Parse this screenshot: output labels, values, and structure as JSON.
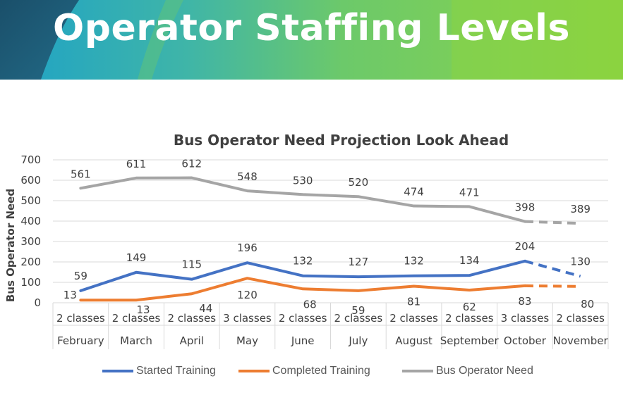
{
  "page_title": "Operator Staffing Levels",
  "colors": {
    "banner_dark": "#1c5a78",
    "banner_teal": "#1ea2c7",
    "banner_green": "#6cc96a",
    "banner_lime": "#8bd33f",
    "started": "#4472c4",
    "completed": "#ed7d31",
    "need": "#a5a5a5"
  },
  "chart_data": {
    "type": "line",
    "title": "Bus Operator Need Projection Look Ahead",
    "xlabel": "",
    "ylabel": "Bus Operator Need",
    "ylim": [
      0,
      700
    ],
    "yticks": [
      0,
      100,
      200,
      300,
      400,
      500,
      600,
      700
    ],
    "grid": true,
    "legend_position": "bottom",
    "categories": [
      "February",
      "March",
      "April",
      "May",
      "June",
      "July",
      "August",
      "September",
      "October",
      "November"
    ],
    "classes": [
      "2 classes",
      "2 classes",
      "2 classes",
      "3 classes",
      "2 classes",
      "2 classes",
      "2 classes",
      "2 classes",
      "3 classes",
      "2 classes"
    ],
    "projection_starts_after": "October",
    "series": [
      {
        "name": "Started Training",
        "values": [
          59,
          149,
          115,
          196,
          132,
          127,
          132,
          134,
          204,
          130
        ],
        "color": "#4472c4"
      },
      {
        "name": "Completed Training",
        "values": [
          13,
          13,
          44,
          120,
          68,
          59,
          81,
          62,
          83,
          80
        ],
        "color": "#ed7d31"
      },
      {
        "name": "Bus Operator Need",
        "values": [
          561,
          611,
          612,
          548,
          530,
          520,
          474,
          471,
          398,
          389
        ],
        "color": "#a5a5a5"
      }
    ]
  }
}
